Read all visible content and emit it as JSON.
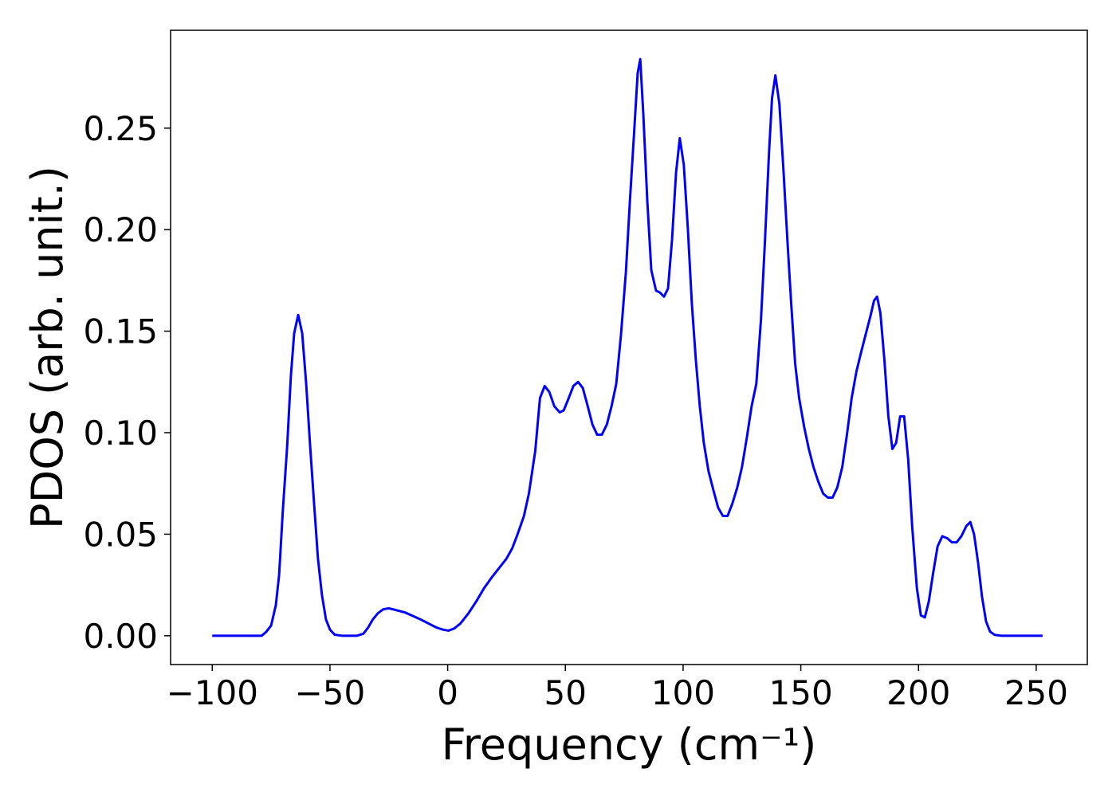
{
  "chart_data": {
    "type": "line",
    "xlabel": "Frequency (cm⁻¹)",
    "ylabel": "PDOS (arb. unit.)",
    "xlim": [
      -117.7,
      271.7
    ],
    "ylim": [
      -0.0142,
      0.2982
    ],
    "xticks": [
      {
        "value": -100,
        "label": "−100"
      },
      {
        "value": -50,
        "label": "−50"
      },
      0,
      50,
      100,
      150,
      200,
      250
    ],
    "yticks": [
      {
        "value": 0,
        "label": "0.00"
      },
      {
        "value": 0.05,
        "label": "0.05"
      },
      {
        "value": 0.1,
        "label": "0.10"
      },
      {
        "value": 0.15,
        "label": "0.15"
      },
      {
        "value": 0.2,
        "label": "0.20"
      },
      {
        "value": 0.25,
        "label": "0.25"
      }
    ],
    "grid": false,
    "x": [
      -100,
      -79,
      -77,
      -75,
      -73,
      -71.6,
      -70,
      -68.2,
      -66.6,
      -65.2,
      -63.5,
      -61.8,
      -60.1,
      -58.4,
      -56.8,
      -55.1,
      -53.4,
      -51.7,
      -50,
      -48,
      -45,
      -38.5,
      -35.8,
      -33.8,
      -31.8,
      -29.7,
      -27.4,
      -25,
      -21.6,
      -18.2,
      -14.9,
      -11.5,
      -8.1,
      -4.7,
      -2,
      0.3,
      2.7,
      5.4,
      8.8,
      12.2,
      15.5,
      18.9,
      22.3,
      25,
      27.4,
      29.7,
      32.4,
      34.5,
      37.2,
      39.2,
      41.2,
      43.2,
      45.3,
      47.6,
      49.3,
      51.4,
      53.4,
      55.4,
      57.4,
      59.5,
      61.5,
      63.5,
      65.5,
      67.6,
      69.6,
      71.6,
      73.6,
      75.7,
      77.4,
      79.1,
      80.7,
      81.8,
      83.1,
      84.8,
      86.5,
      88.5,
      90.2,
      91.9,
      93.6,
      95.3,
      97,
      98.6,
      100.3,
      102,
      103.7,
      105.4,
      107.1,
      108.8,
      110.8,
      112.8,
      114.9,
      116.9,
      118.9,
      120.9,
      123,
      125,
      127,
      129.1,
      131.1,
      133.1,
      134.8,
      136.5,
      137.8,
      139.2,
      140.9,
      142.6,
      144.3,
      145.9,
      147.6,
      149.3,
      151.4,
      153.4,
      155.4,
      157.4,
      159.5,
      161.5,
      163.5,
      165.5,
      167.6,
      169.6,
      171.6,
      173.6,
      175.7,
      177.7,
      179.7,
      181.1,
      182.4,
      183.8,
      185.5,
      187.2,
      188.9,
      190.5,
      192.2,
      193.9,
      195.6,
      197.3,
      199.3,
      201,
      202.7,
      204.4,
      206.1,
      208.1,
      210.1,
      212.2,
      214.2,
      216.2,
      218.2,
      220.3,
      222,
      223.6,
      225.3,
      227,
      228.7,
      230.4,
      232.4,
      235.1,
      252.7
    ],
    "series": [
      {
        "color": "#0000ff",
        "values": [
          0,
          0,
          0.002,
          0.005,
          0.015,
          0.03,
          0.062,
          0.093,
          0.128,
          0.149,
          0.158,
          0.149,
          0.124,
          0.093,
          0.066,
          0.038,
          0.02,
          0.008,
          0.003,
          0.0005,
          0,
          0,
          0.001,
          0.004,
          0.008,
          0.011,
          0.013,
          0.0135,
          0.0125,
          0.0115,
          0.0098,
          0.008,
          0.006,
          0.004,
          0.003,
          0.0025,
          0.0035,
          0.006,
          0.011,
          0.017,
          0.0235,
          0.029,
          0.034,
          0.038,
          0.043,
          0.05,
          0.059,
          0.07,
          0.091,
          0.117,
          0.123,
          0.12,
          0.113,
          0.11,
          0.111,
          0.117,
          0.123,
          0.125,
          0.122,
          0.113,
          0.104,
          0.099,
          0.099,
          0.104,
          0.113,
          0.124,
          0.148,
          0.179,
          0.214,
          0.246,
          0.277,
          0.284,
          0.257,
          0.214,
          0.18,
          0.17,
          0.169,
          0.167,
          0.171,
          0.195,
          0.228,
          0.245,
          0.232,
          0.201,
          0.164,
          0.136,
          0.113,
          0.095,
          0.081,
          0.072,
          0.063,
          0.059,
          0.059,
          0.065,
          0.073,
          0.083,
          0.097,
          0.113,
          0.124,
          0.156,
          0.195,
          0.238,
          0.265,
          0.276,
          0.262,
          0.23,
          0.195,
          0.164,
          0.134,
          0.117,
          0.103,
          0.092,
          0.083,
          0.076,
          0.07,
          0.068,
          0.068,
          0.073,
          0.083,
          0.099,
          0.117,
          0.13,
          0.14,
          0.149,
          0.158,
          0.165,
          0.167,
          0.159,
          0.136,
          0.108,
          0.092,
          0.095,
          0.108,
          0.108,
          0.087,
          0.054,
          0.0235,
          0.01,
          0.009,
          0.017,
          0.03,
          0.044,
          0.049,
          0.048,
          0.046,
          0.046,
          0.049,
          0.054,
          0.056,
          0.05,
          0.036,
          0.019,
          0.007,
          0.002,
          0.0004,
          0,
          0
        ]
      }
    ]
  }
}
